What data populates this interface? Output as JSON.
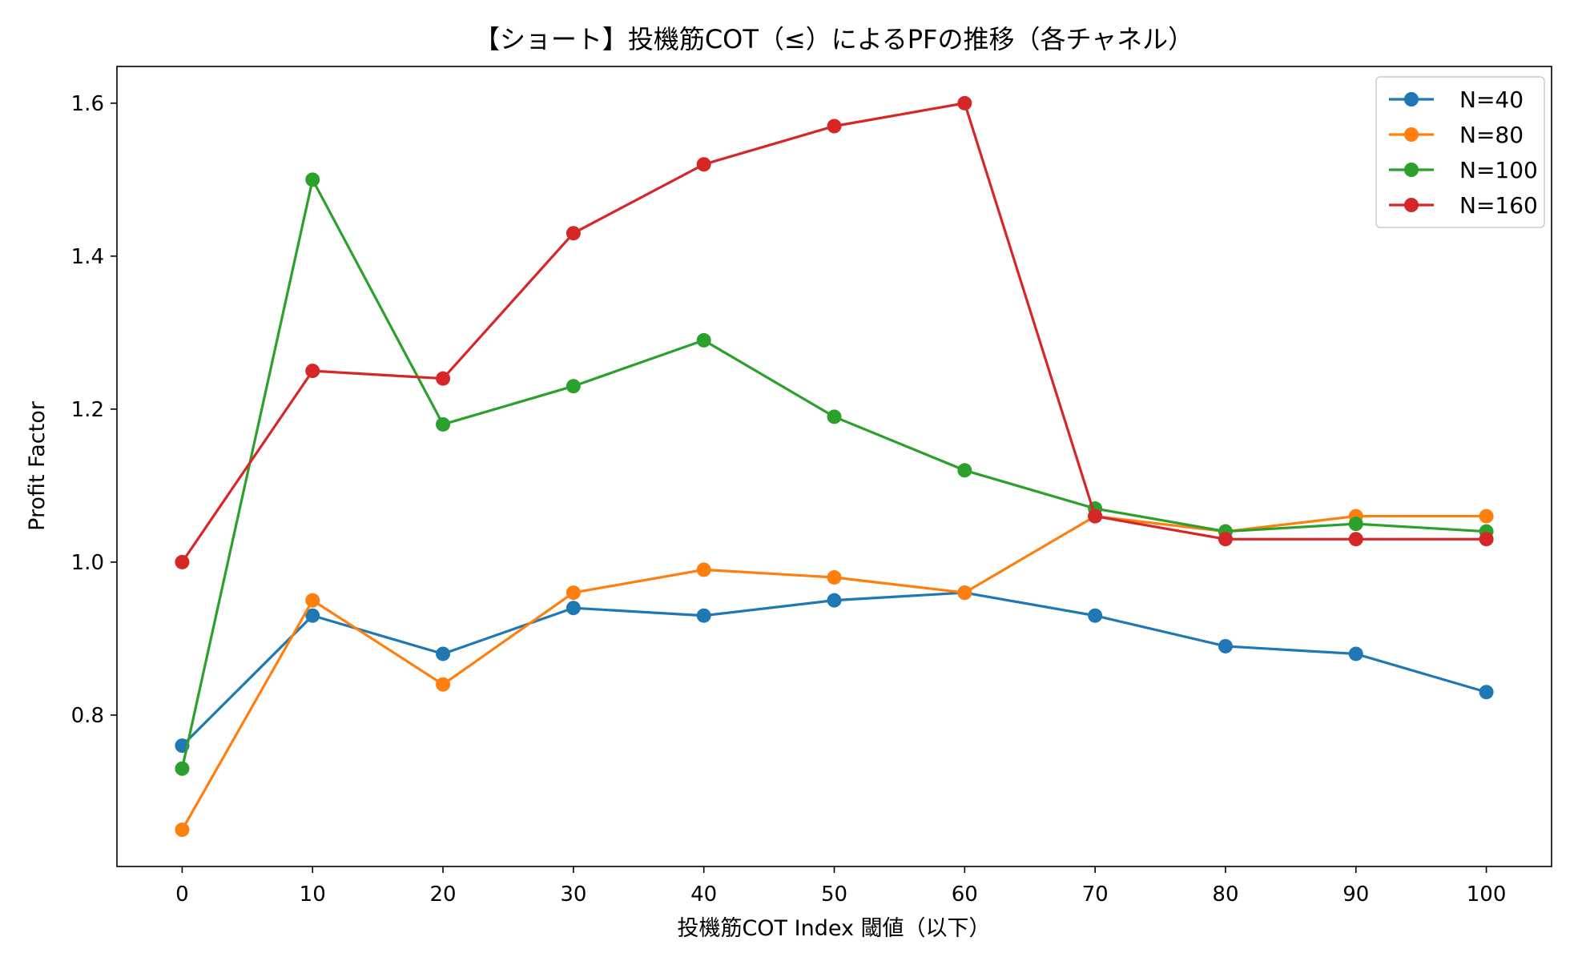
{
  "chart_data": {
    "type": "line",
    "title": "【ショート】投機筋COT（≤）によるPFの推移（各チャネル）",
    "xlabel": "投機筋COT Index 閾値（以下）",
    "ylabel": "Profit Factor",
    "x": [
      0,
      10,
      20,
      30,
      40,
      50,
      60,
      70,
      80,
      90,
      100
    ],
    "x_ticks": [
      0,
      10,
      20,
      30,
      40,
      50,
      60,
      70,
      80,
      90,
      100
    ],
    "x_tick_labels": [
      "0",
      "10",
      "20",
      "30",
      "40",
      "50",
      "60",
      "70",
      "80",
      "90",
      "100"
    ],
    "y_ticks": [
      0.8,
      1.0,
      1.2,
      1.4,
      1.6
    ],
    "y_tick_labels": [
      "0.8",
      "1.0",
      "1.2",
      "1.4",
      "1.6"
    ],
    "xlim": [
      -5,
      105
    ],
    "ylim": [
      0.602,
      1.648
    ],
    "grid": false,
    "legend_position": "top-right",
    "series": [
      {
        "name": "N=40",
        "color": "#1f77b4",
        "values": [
          0.76,
          0.93,
          0.88,
          0.94,
          0.93,
          0.95,
          0.96,
          0.93,
          0.89,
          0.88,
          0.83
        ]
      },
      {
        "name": "N=80",
        "color": "#ff7f0e",
        "values": [
          0.65,
          0.95,
          0.84,
          0.96,
          0.99,
          0.98,
          0.96,
          1.06,
          1.04,
          1.06,
          1.06
        ]
      },
      {
        "name": "N=100",
        "color": "#2ca02c",
        "values": [
          0.73,
          1.5,
          1.18,
          1.23,
          1.29,
          1.19,
          1.12,
          1.07,
          1.04,
          1.05,
          1.04
        ]
      },
      {
        "name": "N=160",
        "color": "#d62728",
        "values": [
          1.0,
          1.25,
          1.24,
          1.43,
          1.52,
          1.57,
          1.6,
          1.06,
          1.03,
          1.03,
          1.03
        ]
      }
    ]
  }
}
